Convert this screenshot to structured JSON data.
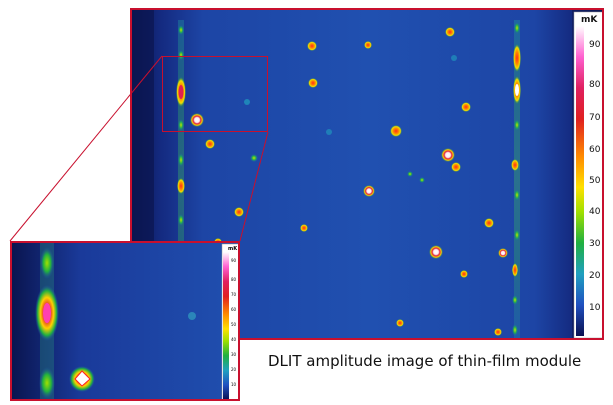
{
  "caption": "DLIT amplitude image of thin-film module",
  "colorbar": {
    "unit": "mK",
    "ticks": [
      "90",
      "80",
      "70",
      "60",
      "50",
      "40",
      "30",
      "20",
      "10"
    ]
  },
  "inset_colorbar": {
    "unit": "mK",
    "ticks": [
      "90",
      "80",
      "70",
      "60",
      "50",
      "40",
      "30",
      "20",
      "10"
    ]
  },
  "colors": {
    "frame_red": "#c8102e",
    "background_blue": "#1a3a9a",
    "hot_white": "#ffffff"
  }
}
